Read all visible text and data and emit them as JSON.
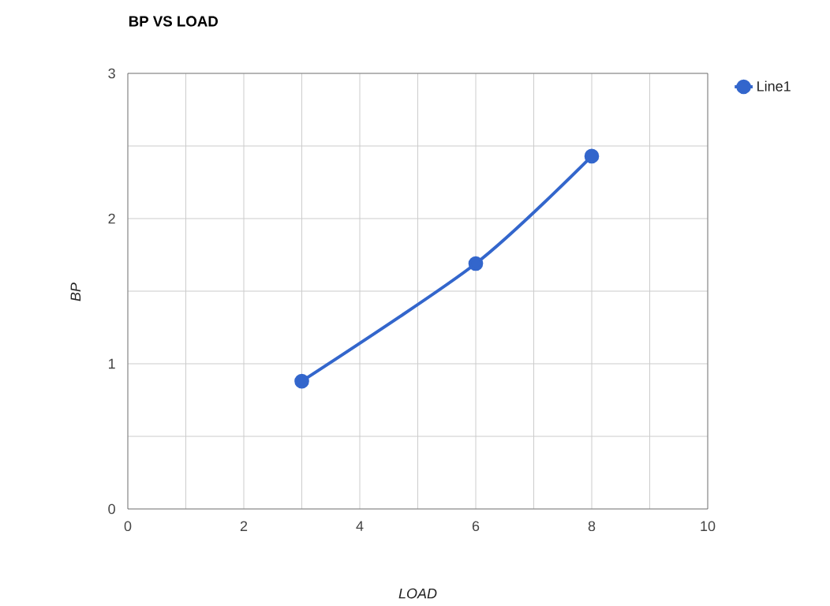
{
  "chart_data": {
    "type": "line",
    "title": "BP VS LOAD",
    "xlabel": "LOAD",
    "ylabel": "BP",
    "x": [
      3,
      6,
      8
    ],
    "series": [
      {
        "name": "Line1",
        "color": "#3366cc",
        "values": [
          0.88,
          1.69,
          2.43
        ]
      }
    ],
    "xlim": [
      0,
      10
    ],
    "xticks": [
      0,
      {
        "value": 1,
        "label": null
      },
      2,
      {
        "value": 3,
        "label": null
      },
      4,
      {
        "value": 5,
        "label": null
      },
      6,
      {
        "value": 7,
        "label": null
      },
      8,
      {
        "value": 9,
        "label": null
      },
      10
    ],
    "ylim": [
      0,
      3
    ],
    "yticks": [
      0,
      {
        "value": 0.5,
        "label": null
      },
      1,
      {
        "value": 1.5,
        "label": null
      },
      2,
      {
        "value": 2.5,
        "label": null
      },
      3
    ],
    "grid": true,
    "legend": "top right",
    "marker": "circle",
    "line_style": "solid"
  }
}
